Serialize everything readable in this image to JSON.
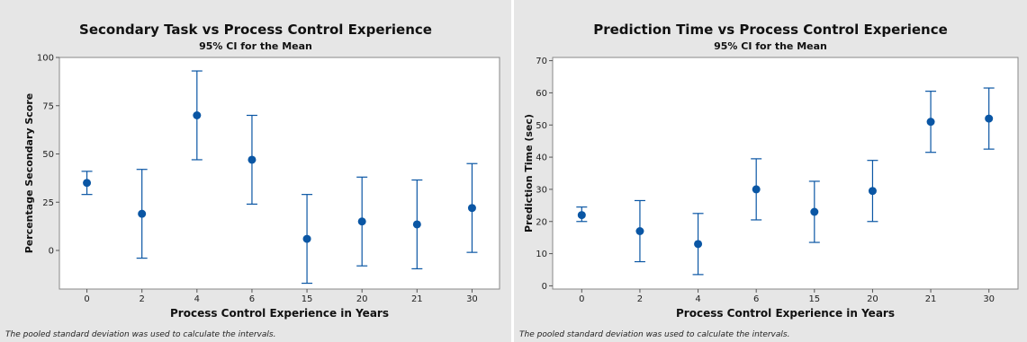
{
  "chart_data": [
    {
      "type": "interval",
      "title": "Secondary Task vs Process Control Experience",
      "subtitle": "95% CI for the Mean",
      "xlabel": "Process Control Experience in Years",
      "ylabel": "Percentage Secondary Score",
      "categories": [
        "0",
        "2",
        "4",
        "6",
        "15",
        "20",
        "21",
        "30"
      ],
      "ylim": [
        -20,
        100
      ],
      "yticks": [
        0,
        25,
        50,
        75,
        100
      ],
      "means": [
        35,
        19,
        70,
        47,
        6,
        15,
        13.5,
        22
      ],
      "lower": [
        29,
        -4,
        47,
        24,
        -17,
        -8,
        -9.5,
        -1
      ],
      "upper": [
        41,
        42,
        93,
        70,
        29,
        38,
        36.5,
        45
      ],
      "footnote": "The pooled standard deviation was used to calculate the intervals."
    },
    {
      "type": "interval",
      "title": "Prediction Time vs Process Control Experience",
      "subtitle": "95% CI for the Mean",
      "xlabel": "Process Control Experience in Years",
      "ylabel": "Prediction Time (sec)",
      "categories": [
        "0",
        "2",
        "4",
        "6",
        "15",
        "20",
        "21",
        "30"
      ],
      "ylim": [
        -1,
        71
      ],
      "yticks": [
        0,
        10,
        20,
        30,
        40,
        50,
        60,
        70
      ],
      "means": [
        22,
        17,
        13,
        30,
        23,
        29.5,
        51,
        52
      ],
      "lower": [
        20,
        7.5,
        3.5,
        20.5,
        13.5,
        20,
        41.5,
        42.5
      ],
      "upper": [
        24.5,
        26.5,
        22.5,
        39.5,
        32.5,
        39,
        60.5,
        61.5
      ],
      "footnote": "The pooled standard deviation was used to calculate the intervals."
    }
  ],
  "colors": {
    "marker": "#0a56a4",
    "frame": "#888888",
    "panel_bg": "#e6e6e6",
    "plot_bg": "#ffffff"
  }
}
